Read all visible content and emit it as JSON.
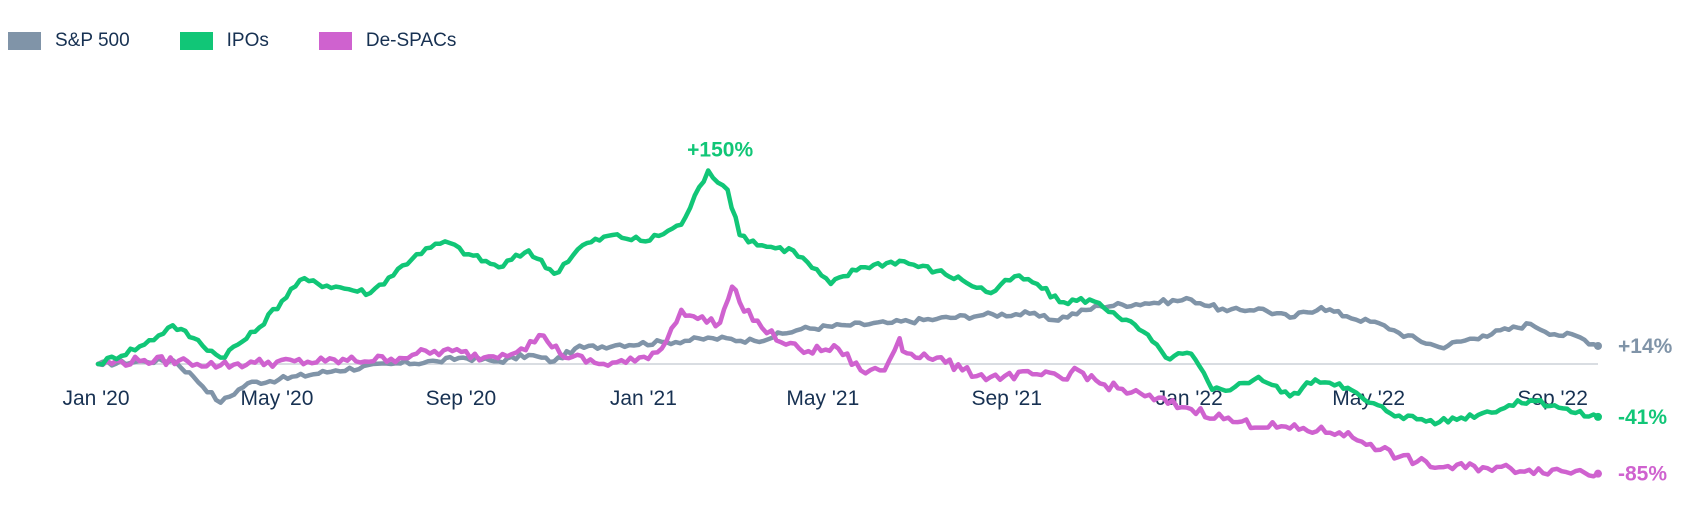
{
  "legend": [
    {
      "label": "S&P 500",
      "color": "#8094a8"
    },
    {
      "label": "IPOs",
      "color": "#11c677"
    },
    {
      "label": "De-SPACs",
      "color": "#cf62cf"
    }
  ],
  "chart_data": {
    "type": "line",
    "title": "",
    "xlabel": "",
    "ylabel": "",
    "x_ticks": [
      "Jan '20",
      "May '20",
      "Sep '20",
      "Jan '21",
      "May '21",
      "Sep '21",
      "Jan '22",
      "May '22",
      "Sep '22"
    ],
    "grid": false,
    "baseline": 0,
    "ylim": [
      -90,
      165
    ],
    "annotations": [
      {
        "text": "+150%",
        "x": "2021-02-20",
        "y": 150,
        "series": "IPOs"
      }
    ],
    "end_labels": [
      {
        "series": "S&P 500",
        "text": "+14%"
      },
      {
        "series": "IPOs",
        "text": "-41%"
      },
      {
        "series": "De-SPACs",
        "text": "-85%"
      }
    ],
    "series": [
      {
        "name": "S&P 500",
        "color": "#8094a8",
        "points": [
          [
            "2020-01-01",
            0
          ],
          [
            "2020-02-01",
            2
          ],
          [
            "2020-02-20",
            3
          ],
          [
            "2020-03-05",
            -10
          ],
          [
            "2020-03-23",
            -30
          ],
          [
            "2020-04-10",
            -15
          ],
          [
            "2020-05-01",
            -12
          ],
          [
            "2020-06-08",
            -5
          ],
          [
            "2020-07-15",
            0
          ],
          [
            "2020-08-15",
            2
          ],
          [
            "2020-09-01",
            5
          ],
          [
            "2020-09-25",
            2
          ],
          [
            "2020-10-15",
            7
          ],
          [
            "2020-11-01",
            2
          ],
          [
            "2020-11-15",
            12
          ],
          [
            "2020-12-15",
            15
          ],
          [
            "2021-01-15",
            17
          ],
          [
            "2021-02-15",
            20
          ],
          [
            "2021-03-15",
            18
          ],
          [
            "2021-04-15",
            27
          ],
          [
            "2021-05-15",
            30
          ],
          [
            "2021-06-15",
            32
          ],
          [
            "2021-07-15",
            35
          ],
          [
            "2021-08-15",
            38
          ],
          [
            "2021-09-15",
            39
          ],
          [
            "2021-10-01",
            34
          ],
          [
            "2021-11-01",
            45
          ],
          [
            "2021-12-01",
            47
          ],
          [
            "2022-01-01",
            50
          ],
          [
            "2022-01-25",
            41
          ],
          [
            "2022-02-15",
            43
          ],
          [
            "2022-03-08",
            36
          ],
          [
            "2022-03-29",
            44
          ],
          [
            "2022-04-15",
            37
          ],
          [
            "2022-05-10",
            30
          ],
          [
            "2022-05-20",
            24
          ],
          [
            "2022-06-16",
            13
          ],
          [
            "2022-07-15",
            22
          ],
          [
            "2022-08-16",
            31
          ],
          [
            "2022-09-01",
            23
          ],
          [
            "2022-09-15",
            22
          ],
          [
            "2022-09-30",
            14
          ]
        ]
      },
      {
        "name": "IPOs",
        "color": "#11c677",
        "points": [
          [
            "2020-01-01",
            0
          ],
          [
            "2020-02-01",
            15
          ],
          [
            "2020-02-20",
            30
          ],
          [
            "2020-03-05",
            20
          ],
          [
            "2020-03-23",
            5
          ],
          [
            "2020-04-15",
            25
          ],
          [
            "2020-05-15",
            65
          ],
          [
            "2020-06-08",
            60
          ],
          [
            "2020-07-01",
            55
          ],
          [
            "2020-08-01",
            85
          ],
          [
            "2020-08-20",
            95
          ],
          [
            "2020-09-05",
            85
          ],
          [
            "2020-09-25",
            75
          ],
          [
            "2020-10-15",
            88
          ],
          [
            "2020-11-01",
            70
          ],
          [
            "2020-11-20",
            92
          ],
          [
            "2020-12-10",
            100
          ],
          [
            "2021-01-01",
            95
          ],
          [
            "2021-01-25",
            108
          ],
          [
            "2021-02-12",
            150
          ],
          [
            "2021-02-25",
            135
          ],
          [
            "2021-03-05",
            100
          ],
          [
            "2021-03-20",
            92
          ],
          [
            "2021-04-10",
            88
          ],
          [
            "2021-05-05",
            62
          ],
          [
            "2021-05-25",
            75
          ],
          [
            "2021-06-20",
            80
          ],
          [
            "2021-07-15",
            72
          ],
          [
            "2021-08-01",
            65
          ],
          [
            "2021-08-20",
            55
          ],
          [
            "2021-09-05",
            68
          ],
          [
            "2021-09-20",
            62
          ],
          [
            "2021-10-05",
            48
          ],
          [
            "2021-10-25",
            50
          ],
          [
            "2021-11-10",
            40
          ],
          [
            "2021-11-30",
            25
          ],
          [
            "2021-12-15",
            5
          ],
          [
            "2022-01-01",
            8
          ],
          [
            "2022-01-15",
            -20
          ],
          [
            "2022-01-30",
            -18
          ],
          [
            "2022-02-15",
            -10
          ],
          [
            "2022-03-08",
            -25
          ],
          [
            "2022-03-25",
            -12
          ],
          [
            "2022-04-10",
            -15
          ],
          [
            "2022-04-30",
            -30
          ],
          [
            "2022-05-20",
            -40
          ],
          [
            "2022-06-16",
            -45
          ],
          [
            "2022-07-15",
            -38
          ],
          [
            "2022-08-16",
            -28
          ],
          [
            "2022-09-01",
            -32
          ],
          [
            "2022-09-15",
            -38
          ],
          [
            "2022-09-30",
            -41
          ]
        ]
      },
      {
        "name": "De-SPACs",
        "color": "#cf62cf",
        "points": [
          [
            "2020-01-01",
            0
          ],
          [
            "2020-02-01",
            3
          ],
          [
            "2020-03-01",
            2
          ],
          [
            "2020-03-23",
            -1
          ],
          [
            "2020-04-15",
            1
          ],
          [
            "2020-06-01",
            2
          ],
          [
            "2020-07-15",
            4
          ],
          [
            "2020-08-01",
            8
          ],
          [
            "2020-08-25",
            10
          ],
          [
            "2020-09-15",
            5
          ],
          [
            "2020-10-10",
            12
          ],
          [
            "2020-10-25",
            22
          ],
          [
            "2020-11-05",
            8
          ],
          [
            "2020-12-01",
            0
          ],
          [
            "2020-12-25",
            2
          ],
          [
            "2021-01-12",
            12
          ],
          [
            "2021-01-25",
            42
          ],
          [
            "2021-02-05",
            35
          ],
          [
            "2021-02-20",
            32
          ],
          [
            "2021-02-28",
            60
          ],
          [
            "2021-03-05",
            48
          ],
          [
            "2021-03-20",
            28
          ],
          [
            "2021-04-05",
            15
          ],
          [
            "2021-04-20",
            10
          ],
          [
            "2021-05-10",
            12
          ],
          [
            "2021-05-25",
            -5
          ],
          [
            "2021-06-10",
            -5
          ],
          [
            "2021-06-20",
            20
          ],
          [
            "2021-06-22",
            10
          ],
          [
            "2021-07-15",
            5
          ],
          [
            "2021-08-01",
            -5
          ],
          [
            "2021-08-20",
            -10
          ],
          [
            "2021-09-20",
            -8
          ],
          [
            "2021-10-10",
            -12
          ],
          [
            "2021-10-15",
            -3
          ],
          [
            "2021-11-01",
            -15
          ],
          [
            "2021-12-01",
            -25
          ],
          [
            "2022-01-01",
            -35
          ],
          [
            "2022-02-01",
            -45
          ],
          [
            "2022-03-08",
            -50
          ],
          [
            "2022-04-10",
            -53
          ],
          [
            "2022-05-01",
            -62
          ],
          [
            "2022-05-20",
            -72
          ],
          [
            "2022-06-16",
            -80
          ],
          [
            "2022-07-15",
            -80
          ],
          [
            "2022-08-15",
            -82
          ],
          [
            "2022-09-15",
            -83
          ],
          [
            "2022-09-30",
            -85
          ]
        ]
      }
    ]
  }
}
